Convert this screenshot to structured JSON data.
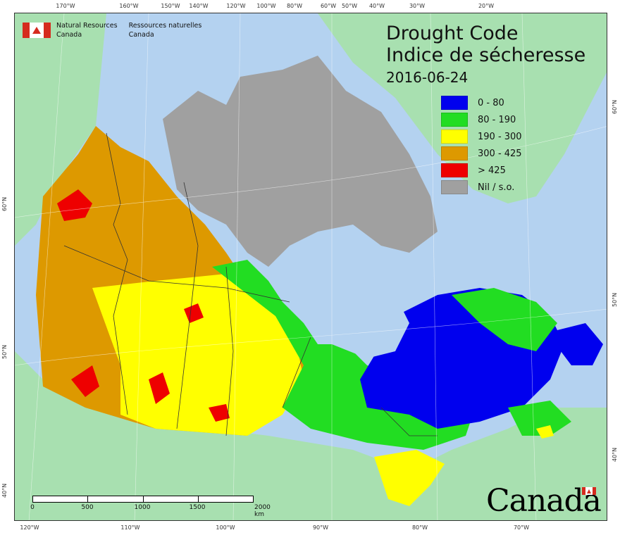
{
  "agency": {
    "english": [
      "Natural Resources",
      "Canada"
    ],
    "french": [
      "Ressources naturelles",
      "Canada"
    ]
  },
  "title": {
    "en": "Drought Code",
    "fr": "Indice de sécheresse",
    "date": "2016-06-24"
  },
  "legend": [
    {
      "label": "0 - 80",
      "color": "#0000ee"
    },
    {
      "label": "80 - 190",
      "color": "#22dd22"
    },
    {
      "label": "190 - 300",
      "color": "#ffff00"
    },
    {
      "label": "300 - 425",
      "color": "#dd9900"
    },
    {
      "label": "> 425",
      "color": "#ee0000"
    },
    {
      "label": "Nil / s.o.",
      "color": "#a0a0a0"
    }
  ],
  "colors": {
    "water": "#b4d2f0",
    "land_outside": "#a8e0b0",
    "greenland": "#a8e0b0"
  },
  "axes": {
    "top": [
      "170°W",
      "160°W",
      "150°W",
      "140°W",
      "120°W",
      "100°W",
      "80°W",
      "60°W",
      "50°W",
      "40°W",
      "30°W",
      "20°W"
    ],
    "bottom": [
      "120°W",
      "110°W",
      "100°W",
      "90°W",
      "80°W",
      "70°W"
    ],
    "left": [
      "60°N",
      "50°N",
      "40°N"
    ],
    "right": [
      "60°N",
      "50°N",
      "40°N"
    ]
  },
  "scale": {
    "ticks": [
      "0",
      "500",
      "1000",
      "1500",
      "2000  km"
    ]
  },
  "wordmark": "Canada"
}
